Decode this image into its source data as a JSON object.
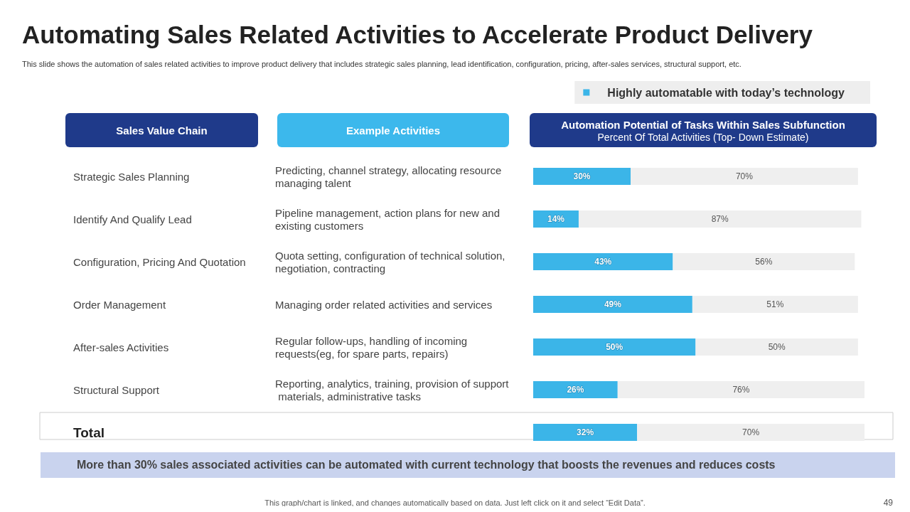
{
  "chart_data": {
    "type": "bar",
    "orientation": "horizontal",
    "stacked": true,
    "title": "Automating Sales Related Activities to Accelerate Product Delivery",
    "subtitle": "This slide shows the automation of sales related activities to improve product delivery that includes strategic sales planning, lead identification, configuration, pricing, after-sales services, structural support, etc.",
    "categories": [
      "Strategic Sales Planning",
      "Identify And Qualify Lead",
      "Configuration, Pricing And Quotation",
      "Order Management",
      "After-sales Activities",
      "Structural Support",
      "Total"
    ],
    "series": [
      {
        "name": "Highly automatable with today’s technology",
        "color": "#3bb5e8",
        "values": [
          30,
          14,
          43,
          49,
          50,
          26,
          32
        ],
        "value_labels": [
          "30%",
          "14%",
          "43%",
          "49%",
          "50%",
          "26%",
          "32%"
        ]
      },
      {
        "color": "#efefef",
        "values": [
          70,
          87,
          56,
          51,
          50,
          76,
          70
        ],
        "value_labels": [
          "70%",
          "87%",
          "56%",
          "51%",
          "50%",
          "76%",
          "70%"
        ]
      }
    ],
    "legend": "top right",
    "annotations": [
      "Sales Value Chain",
      "Example Activities",
      "Automation Potential of Tasks Within Sales Subfunction",
      "Percent Of Total Activities (Top- Down Estimate)",
      "Predicting, channel strategy, allocating resource managing talent",
      "Pipeline management, action plans for new and existing customers",
      "Quota setting, configuration of technical solution, negotiation, contracting",
      "Managing order related activities and services",
      "Regular follow-ups, handling of incoming requests(eg, for spare parts, repairs)",
      "Reporting, analytics, training, provision of support materials, administrative tasks",
      "More than 30% sales associated activities can be automated with current technology that boosts the revenues and reduces costs",
      "This graph/chart is linked, and changes automatically based on data. Just left click on it and select “Edit Data”.",
      "49"
    ]
  }
}
